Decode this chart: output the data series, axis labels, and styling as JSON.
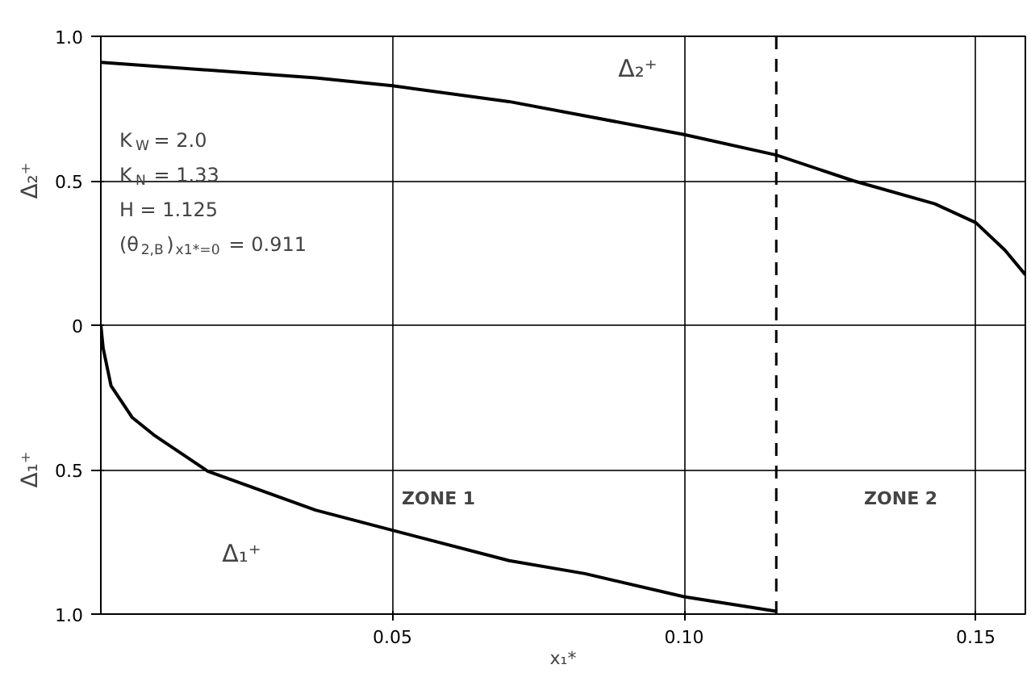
{
  "chart_data": {
    "type": "line",
    "xlabel": "x₁*",
    "ylabel": "Δ₂⁺",
    "xlim": [
      0,
      0.1585
    ],
    "ylim": [
      -1.0,
      1.0
    ],
    "xticks": [
      0.05,
      {
        "value": 0.1,
        "label": "0.10"
      },
      0.15
    ],
    "yticks": [
      {
        "value": -1.0,
        "label": "1.0"
      },
      {
        "value": -0.5,
        "label": "0.5"
      },
      0,
      0.5,
      {
        "value": 1.0,
        "label": "1.0"
      }
    ],
    "grid": true,
    "legend": false,
    "marker": "none",
    "line_style": "solid",
    "series": [
      {
        "name": "Δ₂⁺",
        "color": "#000000",
        "x": [
          0,
          0.0368,
          0.05,
          0.07,
          0.1,
          0.1158,
          0.129,
          0.143,
          0.15,
          0.155,
          0.1585
        ],
        "values": [
          0.91,
          0.856,
          0.829,
          0.774,
          0.66,
          0.589,
          0.5,
          0.42,
          0.355,
          0.26,
          0.175
        ]
      },
      {
        "name": "Δ₁⁺",
        "color": "#000000",
        "x": [
          0,
          0.0004,
          0.00175,
          0.0054,
          0.0091,
          0.0183,
          0.0368,
          0.05,
          0.07,
          0.083,
          0.1,
          0.1158
        ],
        "values": [
          0,
          -0.08,
          -0.21,
          -0.32,
          -0.38,
          -0.505,
          -0.64,
          -0.71,
          -0.815,
          -0.86,
          -0.94,
          -0.99
        ]
      }
    ],
    "ref_lines": [
      {
        "axis": "x",
        "value": 0.1158,
        "line_style": "dashed",
        "color": "#000000"
      }
    ],
    "annotations": [
      "K$_{W}$ = 2.0",
      "K$_{N}$ = 1.33",
      "H = 1.125",
      "(θ$_{2,B}$)$_{x1*=0}$ = 0.911",
      "ZONE 1",
      "ZONE 2",
      "Δ₁⁺"
    ]
  }
}
